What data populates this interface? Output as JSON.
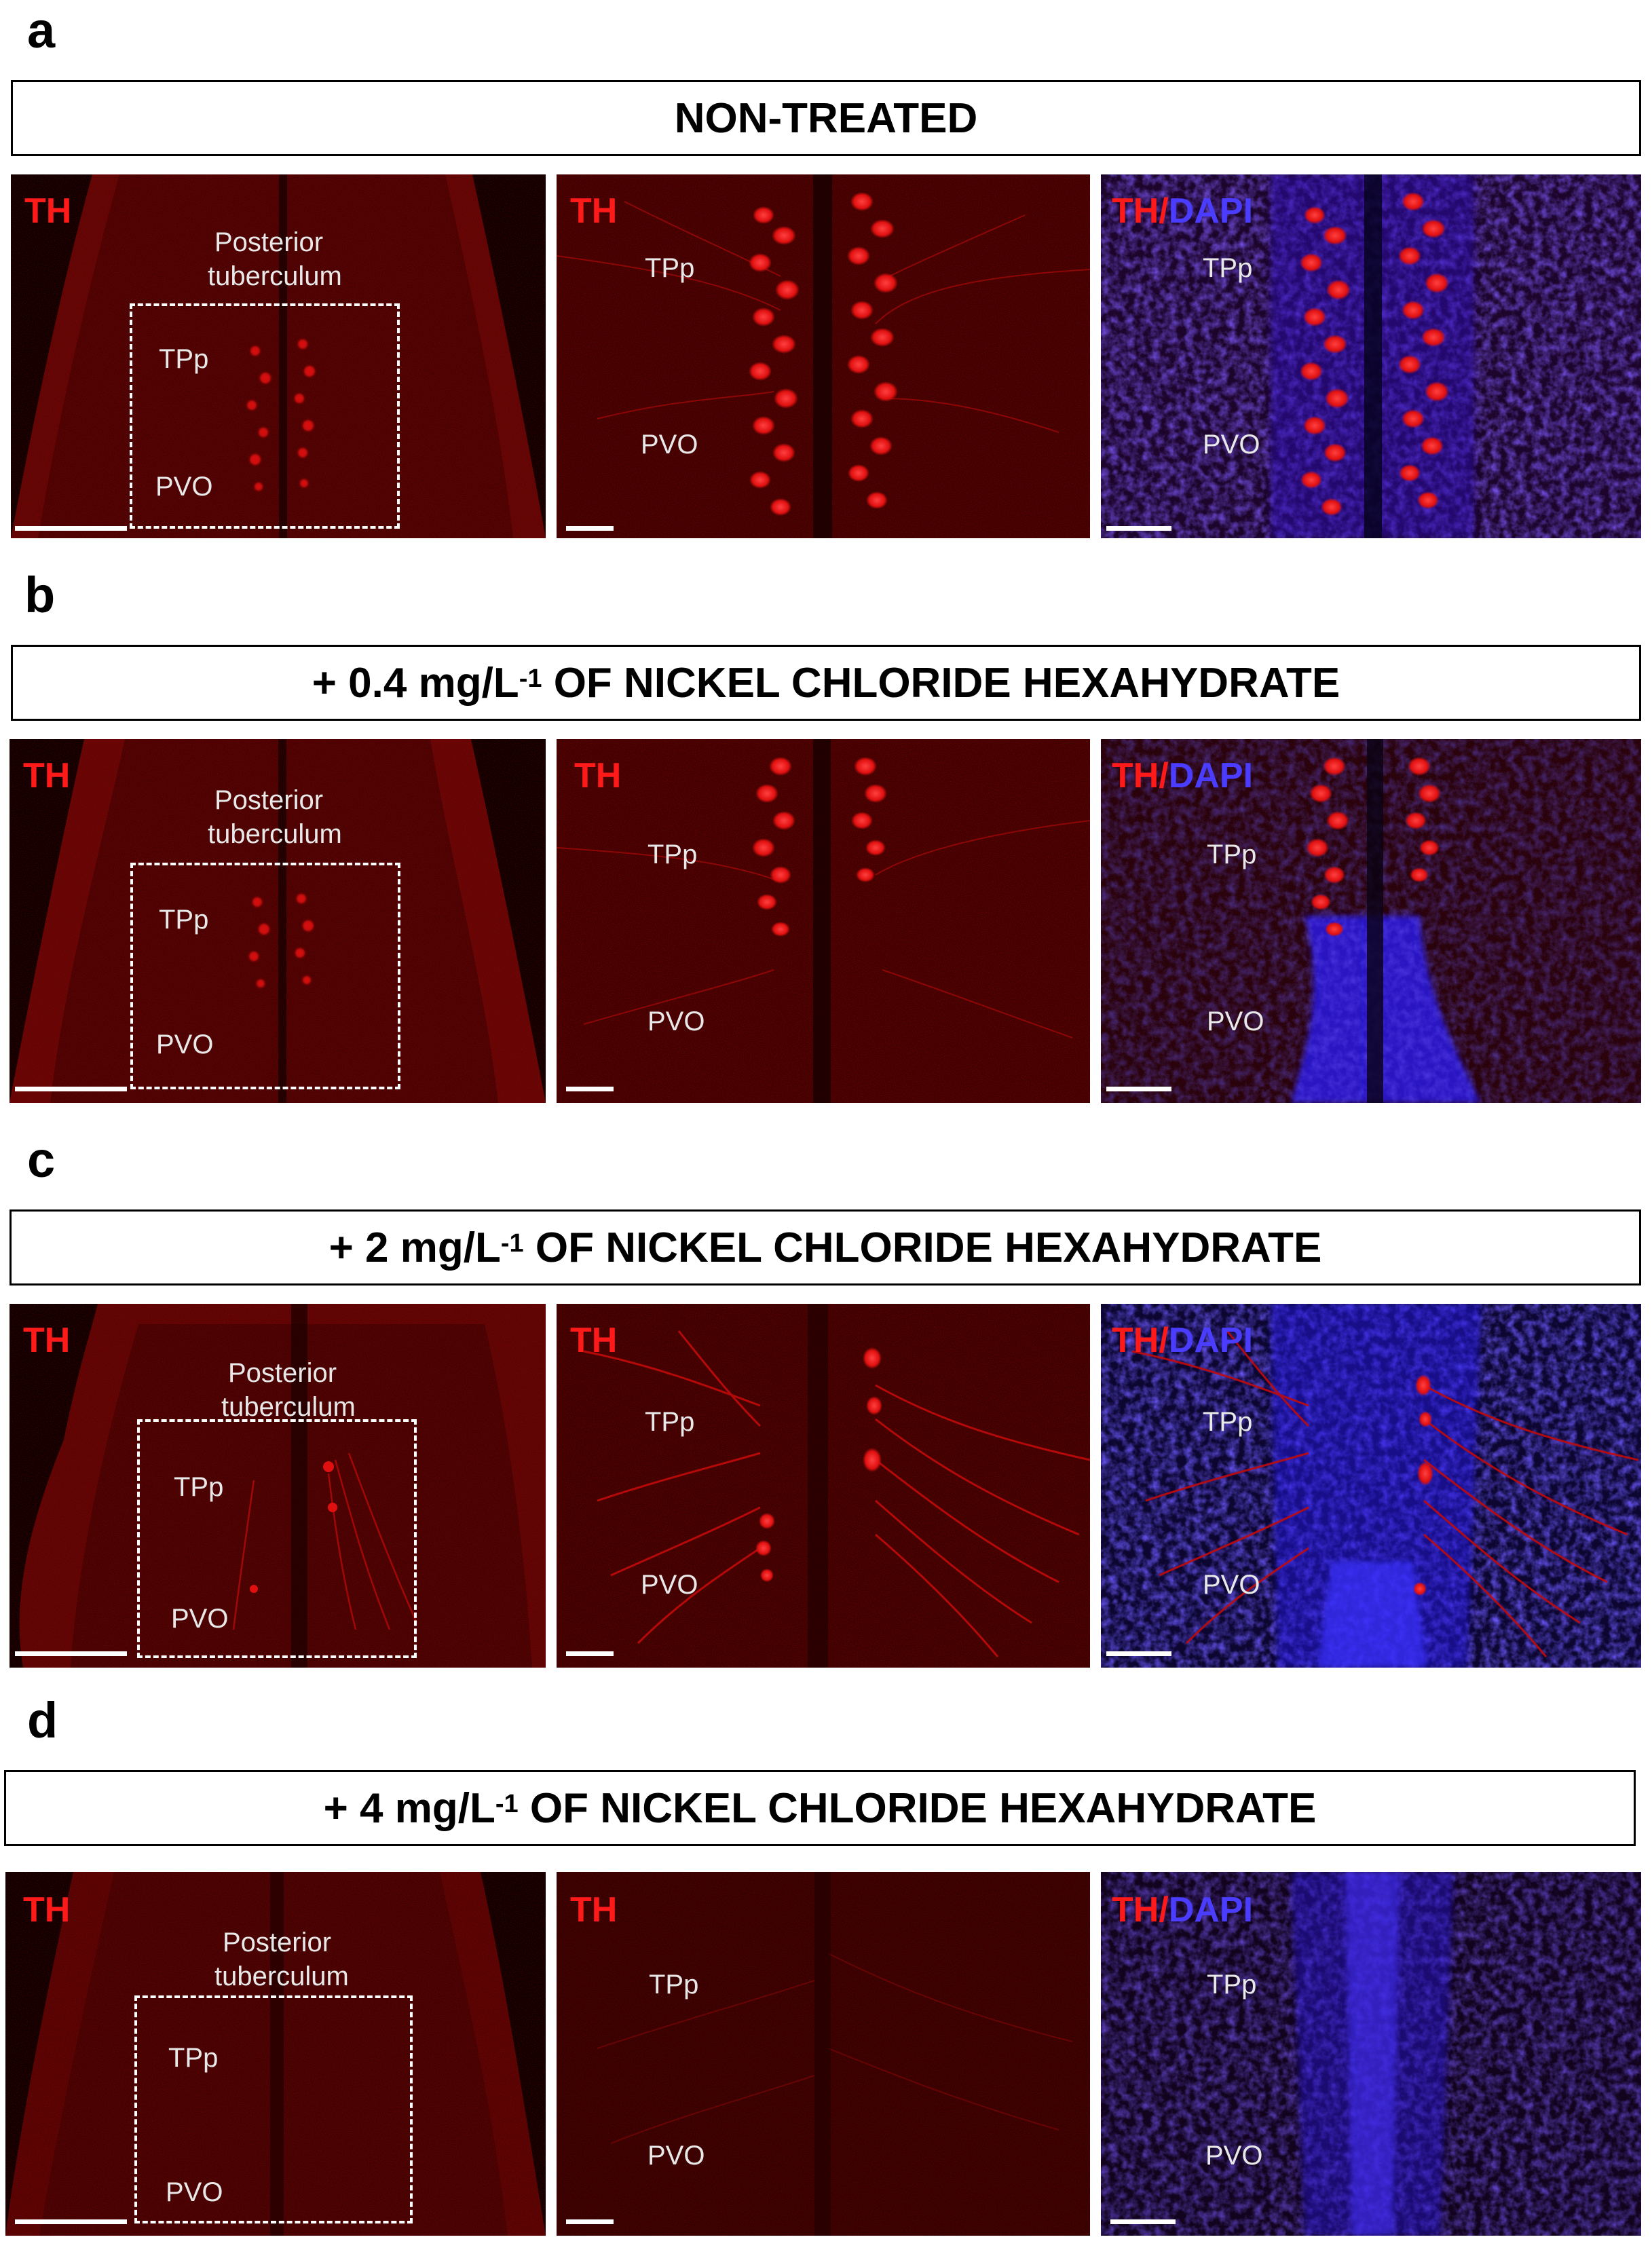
{
  "colors": {
    "th_channel": "#ff1a1a",
    "dapi_channel": "#4a3dff",
    "background": "#ffffff"
  },
  "channel_labels": {
    "th": "TH",
    "slash": "/",
    "dapi": "DAPI"
  },
  "region_labels": {
    "posterior_line1": "Posterior",
    "posterior_line2": "tuberculum",
    "tpp": "TPp",
    "pvo": "PVO"
  },
  "sections": [
    {
      "letter": "a",
      "title_before": "NON-TREATED",
      "title_sup": "",
      "title_after": ""
    },
    {
      "letter": "b",
      "title_before": "+ 0.4 mg/L",
      "title_sup": "-1",
      "title_after": " OF NICKEL CHLORIDE HEXAHYDRATE"
    },
    {
      "letter": "c",
      "title_before": "+ 2 mg/L",
      "title_sup": "-1",
      "title_after": " OF NICKEL CHLORIDE HEXAHYDRATE"
    },
    {
      "letter": "d",
      "title_before": "+ 4 mg/L",
      "title_sup": "-1",
      "title_after": " OF NICKEL CHLORIDE HEXAHYDRATE"
    }
  ]
}
